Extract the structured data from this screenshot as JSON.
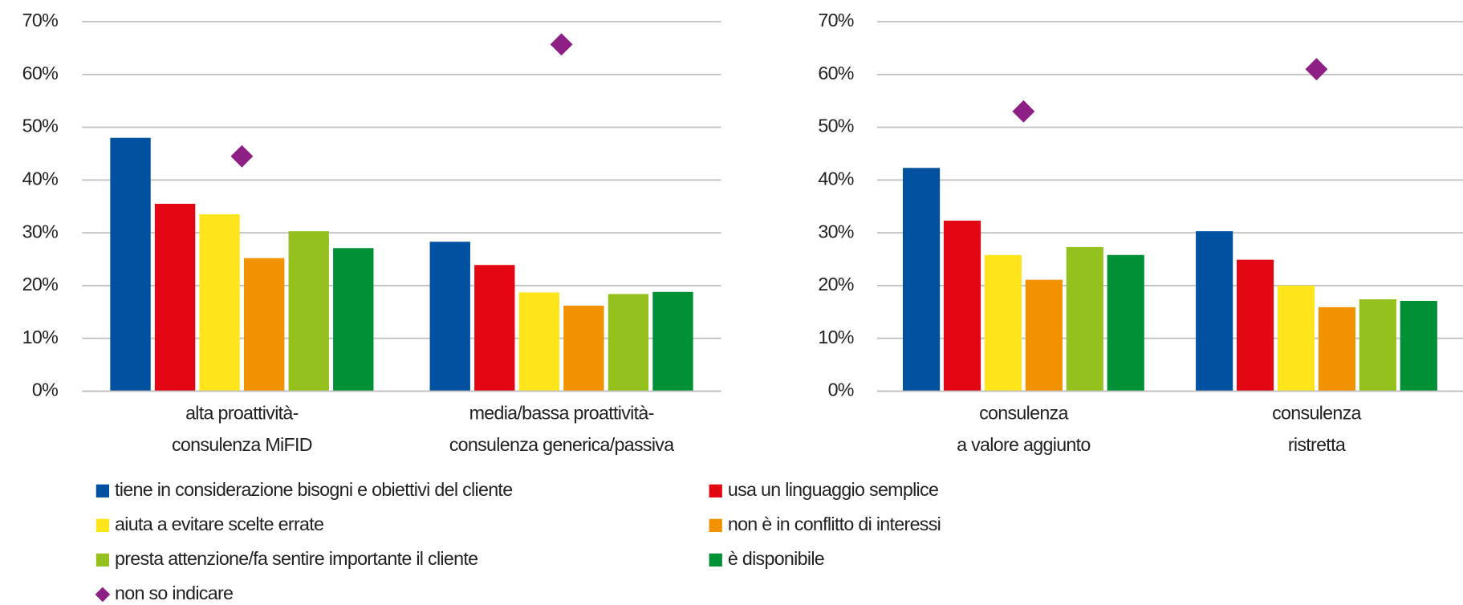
{
  "chart_data": [
    {
      "type": "bar",
      "categories": [
        [
          "alta proattività-",
          "consulenza MiFID"
        ],
        [
          "media/bassa proattività-",
          "consulenza generica/passiva"
        ]
      ],
      "series": [
        {
          "name": "tiene in considerazione bisogni e obiettivi del cliente",
          "color": "#0052a0",
          "values": [
            48,
            28.3
          ]
        },
        {
          "name": "usa un linguaggio semplice",
          "color": "#e30613",
          "values": [
            35.5,
            23.9
          ]
        },
        {
          "name": "aiuta a evitare scelte errate",
          "color": "#ffe51c",
          "values": [
            33.5,
            18.7
          ]
        },
        {
          "name": "non è in conflitto di interessi",
          "color": "#f39200",
          "values": [
            25.2,
            16.2
          ]
        },
        {
          "name": "presta attenzione/fa sentire importante il cliente",
          "color": "#95c11f",
          "values": [
            30.3,
            18.4
          ]
        },
        {
          "name": "è disponibile",
          "color": "#009036",
          "values": [
            27.1,
            18.8
          ]
        },
        {
          "name": "non so indicare",
          "color": "#8e1f84",
          "marker": "diamond",
          "values": [
            44.5,
            65.7
          ]
        }
      ],
      "ylim": [
        0,
        70
      ],
      "yticks": [
        {
          "value": 0,
          "label": "0%"
        },
        {
          "value": 10,
          "label": "10%"
        },
        {
          "value": 20,
          "label": "20%"
        },
        {
          "value": 30,
          "label": "30%"
        },
        {
          "value": 40,
          "label": "40%"
        },
        {
          "value": 50,
          "label": "50%"
        },
        {
          "value": 60,
          "label": "60%"
        },
        {
          "value": 70,
          "label": "70%"
        }
      ],
      "grid": true
    },
    {
      "type": "bar",
      "categories": [
        [
          "consulenza",
          "a valore aggiunto"
        ],
        [
          "consulenza",
          "ristretta"
        ]
      ],
      "series": [
        {
          "values": [
            42.3,
            30.3
          ]
        },
        {
          "values": [
            32.3,
            24.9
          ]
        },
        {
          "values": [
            25.8,
            20
          ]
        },
        {
          "values": [
            21.1,
            15.9
          ]
        },
        {
          "values": [
            27.3,
            17.4
          ]
        },
        {
          "values": [
            25.8,
            17.1
          ]
        },
        {
          "values": [
            53,
            61
          ]
        }
      ],
      "ylim": [
        0,
        70
      ],
      "yticks": [
        {
          "value": 0,
          "label": "0%"
        },
        {
          "value": 10,
          "label": "10%"
        },
        {
          "value": 20,
          "label": "20%"
        },
        {
          "value": 30,
          "label": "30%"
        },
        {
          "value": 40,
          "label": "40%"
        },
        {
          "value": 50,
          "label": "50%"
        },
        {
          "value": 60,
          "label": "60%"
        },
        {
          "value": 70,
          "label": "70%"
        }
      ],
      "grid": true
    }
  ]
}
